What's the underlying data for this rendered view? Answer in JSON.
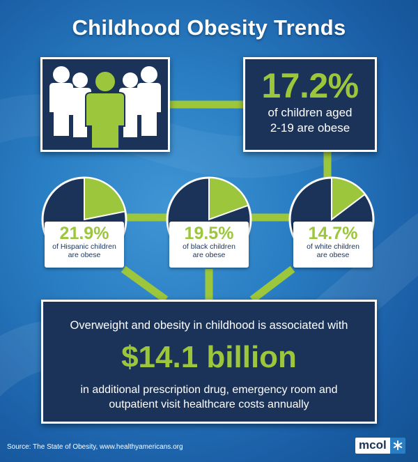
{
  "title": "Childhood Obesity Trends",
  "colors": {
    "accent": "#9cc63b",
    "navy": "#1b3358",
    "background": "#2a7fc4",
    "white": "#ffffff"
  },
  "overall": {
    "value": "17.2%",
    "line1": "of children aged",
    "line2": "2-19 are obese",
    "icon": "people-group-icon"
  },
  "groups": [
    {
      "value": "21.9%",
      "fraction": 0.219,
      "line1": "of Hispanic children",
      "line2": "are obese"
    },
    {
      "value": "19.5%",
      "fraction": 0.195,
      "line1": "of black children",
      "line2": "are obese"
    },
    {
      "value": "14.7%",
      "fraction": 0.147,
      "line1": "of white children",
      "line2": "are obese"
    }
  ],
  "cost": {
    "line1": "Overweight and obesity in childhood is associated with",
    "amount": "$14.1 billion",
    "line2": "in additional prescription drug, emergency room and",
    "line3": "outpatient visit healthcare costs annually"
  },
  "source": "Source:  The State of Obesity, www.healthyamericans.org",
  "logo": {
    "text": "mcol",
    "icon": "snowflake-icon"
  }
}
